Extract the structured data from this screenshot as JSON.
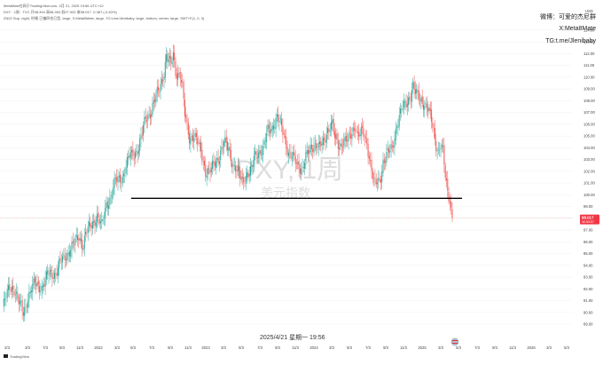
{
  "header": {
    "line1": "MetaMate在网于TradingView.com,  4月 21, 2025 19:56 UTC+10",
    "line2": "DXY · 1周 · TVC  开98.394 高98.394 低97.902 收98.017 -0.387 (-0.40%)",
    "line3": "ZN22 Sup. night, 时格  已偏四合已型, large, X.MetaBMate, large, TG:t.me/Jlenibaby, large, bottom, center, large, SMT+F(1, 0, 3)"
  },
  "watermark": {
    "symbol": "DXY, 1周",
    "name": "美元指数"
  },
  "overlay": {
    "weibo": "微博：可爱的杰尼群",
    "x": "X:Meta8Mate",
    "tg": "TG:t.me/Jlenibaby"
  },
  "datetime": "2025/4/21 星期一 19:56",
  "logo": "TradingView",
  "price_badge": {
    "value": "98.017",
    "sub": "40:53:57"
  },
  "usd_label": "USD",
  "colors": {
    "up": "#26a69a",
    "down": "#ef5350",
    "support": "#000000",
    "badge": "#f23645"
  },
  "chart_data": {
    "type": "candlestick",
    "title": "",
    "ylabel": "USD",
    "ylim": [
      88.8,
      115.4
    ],
    "x_ticks": [
      "2/3",
      "3/3",
      "7/3",
      "9/3",
      "11/3",
      "2022",
      "3/3",
      "5/3",
      "7/3",
      "9/3",
      "11/3",
      "2023",
      "3/3",
      "5/3",
      "7/3",
      "9/3",
      "11/3",
      "2024",
      "3/3",
      "5/3",
      "7/3",
      "9/3",
      "11/3",
      "2025",
      "3/3",
      "5/3",
      "7/3",
      "9/3",
      "11/3",
      "2026",
      "3/3",
      "5/3"
    ],
    "y_ticks": [
      89.0,
      90.0,
      91.0,
      92.0,
      93.0,
      94.0,
      95.0,
      96.0,
      97.0,
      98.0,
      99.0,
      100.0,
      101.0,
      102.0,
      103.0,
      104.0,
      105.0,
      106.0,
      107.0,
      108.0,
      109.0,
      110.0,
      111.0,
      112.0,
      113.0,
      114.0
    ],
    "support_level": 99.7,
    "last_close": 98.017,
    "anchors": [
      [
        0,
        90.4
      ],
      [
        6,
        92.2
      ],
      [
        10,
        92.0
      ],
      [
        14,
        90.8
      ],
      [
        18,
        90.0
      ],
      [
        22,
        91.3
      ],
      [
        28,
        92.5
      ],
      [
        34,
        92.1
      ],
      [
        40,
        93.3
      ],
      [
        46,
        93.3
      ],
      [
        50,
        94.2
      ],
      [
        56,
        95.0
      ],
      [
        62,
        95.8
      ],
      [
        66,
        96.5
      ],
      [
        70,
        95.7
      ],
      [
        72,
        96.7
      ],
      [
        78,
        97.6
      ],
      [
        82,
        98.2
      ],
      [
        86,
        97.3
      ],
      [
        90,
        99.2
      ],
      [
        94,
        99.9
      ],
      [
        98,
        101.2
      ],
      [
        104,
        101.5
      ],
      [
        110,
        103.3
      ],
      [
        114,
        103.5
      ],
      [
        118,
        104.0
      ],
      [
        124,
        106.5
      ],
      [
        128,
        107.0
      ],
      [
        132,
        108.1
      ],
      [
        136,
        109.0
      ],
      [
        140,
        110.5
      ],
      [
        142,
        111.8
      ],
      [
        146,
        111.0
      ],
      [
        148,
        112.0
      ],
      [
        150,
        110.5
      ],
      [
        154,
        110.2
      ],
      [
        156,
        109.0
      ],
      [
        158,
        106.8
      ],
      [
        162,
        104.9
      ],
      [
        166,
        105.0
      ],
      [
        170,
        104.2
      ],
      [
        172,
        103.8
      ],
      [
        176,
        102.0
      ],
      [
        180,
        101.9
      ],
      [
        184,
        102.8
      ],
      [
        188,
        103.3
      ],
      [
        192,
        104.4
      ],
      [
        196,
        104.0
      ],
      [
        200,
        102.5
      ],
      [
        204,
        101.9
      ],
      [
        208,
        101.2
      ],
      [
        212,
        101.8
      ],
      [
        216,
        102.0
      ],
      [
        218,
        103.2
      ],
      [
        222,
        103.7
      ],
      [
        226,
        103.8
      ],
      [
        230,
        105.5
      ],
      [
        234,
        105.8
      ],
      [
        238,
        106.5
      ],
      [
        240,
        106.2
      ],
      [
        244,
        105.2
      ],
      [
        248,
        103.5
      ],
      [
        252,
        103.1
      ],
      [
        256,
        102.6
      ],
      [
        260,
        102.2
      ],
      [
        264,
        103.4
      ],
      [
        270,
        104.4
      ],
      [
        274,
        104.0
      ],
      [
        278,
        104.4
      ],
      [
        282,
        105.6
      ],
      [
        286,
        106.0
      ],
      [
        288,
        104.8
      ],
      [
        292,
        104.2
      ],
      [
        296,
        104.6
      ],
      [
        300,
        104.6
      ],
      [
        304,
        105.6
      ],
      [
        306,
        106.0
      ],
      [
        308,
        105.0
      ],
      [
        312,
        105.3
      ],
      [
        316,
        104.5
      ],
      [
        318,
        103.2
      ],
      [
        320,
        102.2
      ],
      [
        322,
        100.9
      ],
      [
        326,
        101.1
      ],
      [
        328,
        101.6
      ],
      [
        330,
        102.8
      ],
      [
        334,
        103.5
      ],
      [
        338,
        104.0
      ],
      [
        342,
        106.0
      ],
      [
        346,
        107.2
      ],
      [
        350,
        107.8
      ],
      [
        354,
        108.5
      ],
      [
        356,
        109.3
      ],
      [
        358,
        108.6
      ],
      [
        362,
        108.2
      ],
      [
        366,
        107.7
      ],
      [
        368,
        107.4
      ],
      [
        370,
        107.0
      ],
      [
        372,
        106.3
      ],
      [
        376,
        104.3
      ],
      [
        378,
        103.7
      ],
      [
        380,
        104.2
      ],
      [
        382,
        103.6
      ],
      [
        384,
        101.5
      ],
      [
        386,
        100.3
      ],
      [
        388,
        99.6
      ],
      [
        390,
        98.0
      ]
    ],
    "down_weeks": [
      392,
      388,
      386,
      384,
      382
    ]
  }
}
